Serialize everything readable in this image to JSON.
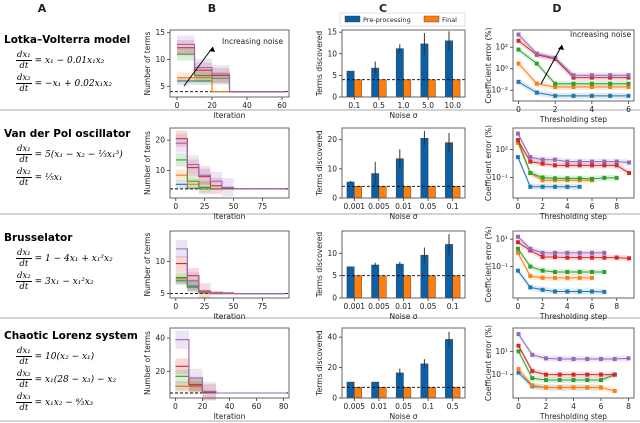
{
  "column_labels": [
    "A",
    "B",
    "C",
    "D"
  ],
  "systems": [
    {
      "title": "Lotka–Volterra model",
      "equations": [
        {
          "num": "dx₁",
          "den": "dt",
          "rhs": "= x₁ − 0.01x₁x₂"
        },
        {
          "num": "dx₂",
          "den": "dt",
          "rhs": "= −x₁ + 0.02x₁x₂"
        }
      ]
    },
    {
      "title": "Van der Pol oscillator",
      "equations": [
        {
          "num": "dx₁",
          "den": "dt",
          "rhs": "= 5(x₁ − x₂ − ⅓x₁³)"
        },
        {
          "num": "dx₂",
          "den": "dt",
          "rhs": "= ⅕x₁"
        }
      ]
    },
    {
      "title": "Brusselator",
      "equations": [
        {
          "num": "dx₁",
          "den": "dt",
          "rhs": "= 1 − 4x₁ + x₁²x₂"
        },
        {
          "num": "dx₂",
          "den": "dt",
          "rhs": "= 3x₁ − x₁²x₂"
        }
      ]
    },
    {
      "title": "Chaotic Lorenz system",
      "equations": [
        {
          "num": "dx₁",
          "den": "dt",
          "rhs": "= 10(x₂ − x₁)"
        },
        {
          "num": "dx₂",
          "den": "dt",
          "rhs": "= x₁(28 − x₃) − x₂"
        },
        {
          "num": "dx₃",
          "den": "dt",
          "rhs": "= x₁x₂ − ⁸⁄₃x₃"
        }
      ]
    }
  ],
  "colors": {
    "series": [
      "#1f77b4",
      "#ff7f0e",
      "#2ca02c",
      "#d62728",
      "#9467bd"
    ],
    "bar_pre": "#0b5fa5",
    "bar_final": "#ff7f0e"
  },
  "chart_data": [
    {
      "panel": "B",
      "row": 0,
      "type": "line",
      "step": true,
      "xlabel": "Iteration",
      "ylabel": "Number of terms",
      "xlim": [
        -4,
        64
      ],
      "ylim": [
        3,
        15.5
      ],
      "xticks": [
        0,
        20,
        40,
        60
      ],
      "yticks": [
        5,
        10,
        15
      ],
      "true_terms": 4,
      "annotation": "Increasing noise",
      "series": [
        {
          "values": [
            6,
            6,
            4,
            4
          ]
        },
        {
          "values": [
            6.6,
            6.6,
            4,
            4
          ]
        },
        {
          "values": [
            11,
            7,
            6.5,
            4
          ]
        },
        {
          "values": [
            12.2,
            8,
            7,
            4
          ]
        },
        {
          "values": [
            12.8,
            8.5,
            7.3,
            4
          ]
        }
      ],
      "xmax": 62
    },
    {
      "panel": "B",
      "row": 1,
      "type": "line",
      "step": true,
      "xlabel": "Iteration",
      "ylabel": "Number of terms",
      "xlim": [
        -5,
        98
      ],
      "ylim": [
        1,
        24
      ],
      "xticks": [
        0,
        25,
        50,
        75
      ],
      "yticks": [
        10,
        20
      ],
      "true_terms": 4,
      "series": [
        {
          "values": [
            5.5,
            4.2,
            4
          ]
        },
        {
          "values": [
            8.5,
            5.5,
            4.5,
            4
          ]
        },
        {
          "values": [
            13.5,
            6.5,
            4.5,
            4
          ]
        },
        {
          "values": [
            20.5,
            11,
            8,
            5,
            4.2,
            4
          ]
        },
        {
          "values": [
            19,
            12,
            8.5,
            6.5,
            4.5,
            4
          ]
        }
      ],
      "xmax": 95
    },
    {
      "panel": "B",
      "row": 2,
      "type": "line",
      "step": true,
      "xlabel": "Iteration",
      "ylabel": "Number of terms",
      "xlim": [
        -5,
        98
      ],
      "ylim": [
        4.3,
        14.8
      ],
      "xticks": [
        0,
        25,
        50,
        75
      ],
      "yticks": [
        5,
        10
      ],
      "true_terms": 5,
      "series": [
        {
          "values": [
            7,
            6,
            5.2,
            5
          ]
        },
        {
          "values": [
            7.3,
            6.2,
            5.2,
            5
          ]
        },
        {
          "values": [
            7.5,
            6.2,
            5.1,
            5
          ]
        },
        {
          "values": [
            9.7,
            7.8,
            5.4,
            5.2,
            5.1,
            5
          ]
        },
        {
          "values": [
            12,
            7,
            5.3,
            5
          ]
        }
      ],
      "xmax": 95
    },
    {
      "panel": "B",
      "row": 3,
      "type": "line",
      "step": true,
      "xlabel": "Iteration",
      "ylabel": "Number of terms",
      "xlim": [
        -4,
        84
      ],
      "ylim": [
        4,
        46
      ],
      "xticks": [
        0,
        20,
        40,
        60,
        80
      ],
      "yticks": [
        20,
        40
      ],
      "true_terms": 7,
      "series": [
        {
          "values": [
            11,
            11,
            7
          ]
        },
        {
          "values": [
            11,
            11,
            7
          ]
        },
        {
          "values": [
            17,
            12,
            7
          ]
        },
        {
          "values": [
            23,
            12,
            7.5,
            7
          ]
        },
        {
          "values": [
            39,
            16,
            8,
            7
          ]
        }
      ],
      "xmax": 82
    },
    {
      "panel": "C",
      "row": 0,
      "type": "bar",
      "xlabel": "Noise σ",
      "ylabel": "Terms discovered",
      "legend": [
        "Pre-processing",
        "Final"
      ],
      "legend_position": "top",
      "categories": [
        "0.1",
        "0.5",
        "1.0",
        "5.0",
        "10.0"
      ],
      "ylim": [
        0,
        15.5
      ],
      "yticks": [
        0,
        5,
        10,
        15
      ],
      "true_terms": 4,
      "series": [
        {
          "name": "Pre-processing",
          "values": [
            6,
            6.7,
            11.2,
            12.3,
            13
          ],
          "errors": [
            0,
            1.5,
            1,
            2.5,
            2.2
          ]
        },
        {
          "name": "Final",
          "values": [
            4,
            4,
            4,
            4,
            4
          ]
        }
      ]
    },
    {
      "panel": "C",
      "row": 1,
      "type": "bar",
      "xlabel": "Noise σ",
      "ylabel": "Terms discovered",
      "categories": [
        "0.001",
        "0.005",
        "0.01",
        "0.05",
        "0.1"
      ],
      "ylim": [
        0,
        24
      ],
      "yticks": [
        0,
        10,
        20
      ],
      "true_terms": 4,
      "series": [
        {
          "name": "Pre-processing",
          "values": [
            5.5,
            8.4,
            13.5,
            20.5,
            19
          ],
          "errors": [
            0.4,
            4,
            3.2,
            2.5,
            3.3
          ]
        },
        {
          "name": "Final",
          "values": [
            4,
            4,
            4,
            4,
            4
          ]
        }
      ]
    },
    {
      "panel": "C",
      "row": 2,
      "type": "bar",
      "xlabel": "Noise σ",
      "ylabel": "Terms discovered",
      "categories": [
        "0.001",
        "0.005",
        "0.01",
        "0.05",
        "0.1"
      ],
      "ylim": [
        0,
        15
      ],
      "yticks": [
        0,
        5,
        10
      ],
      "true_terms": 5,
      "series": [
        {
          "name": "Pre-processing",
          "values": [
            7,
            7.4,
            7.6,
            9.6,
            12
          ],
          "errors": [
            0,
            0.5,
            0.5,
            1.7,
            2.3
          ]
        },
        {
          "name": "Final",
          "values": [
            5,
            5,
            5,
            5,
            5
          ]
        }
      ]
    },
    {
      "panel": "C",
      "row": 3,
      "type": "bar",
      "xlabel": "Noise σ",
      "ylabel": "Terms discovered",
      "categories": [
        "0.005",
        "0.01",
        "0.05",
        "0.1",
        "0.5"
      ],
      "ylim": [
        0,
        46
      ],
      "yticks": [
        0,
        20,
        40
      ],
      "true_terms": 7,
      "series": [
        {
          "name": "Pre-processing",
          "values": [
            10.5,
            10.5,
            16.5,
            22.5,
            38.5
          ],
          "errors": [
            0,
            0,
            2.8,
            3,
            5
          ]
        },
        {
          "name": "Final",
          "values": [
            7,
            7,
            7,
            7,
            7
          ]
        }
      ]
    },
    {
      "panel": "D",
      "row": 0,
      "type": "line",
      "yscale": "log",
      "xlabel": "Thresholding step",
      "ylabel": "Coefficient error (%)",
      "xlim": [
        -0.3,
        6.3
      ],
      "ylim_log10": [
        -3,
        3.6
      ],
      "xticks": [
        0,
        2,
        4,
        6
      ],
      "yticks_log10": [
        2,
        0,
        -2
      ],
      "annotation": "Increasing noise",
      "series": [
        {
          "values": [
            0.06,
            0.006,
            0.003,
            0.003,
            0.003,
            0.003,
            0.003
          ]
        },
        {
          "values": [
            3,
            0.04,
            0.02,
            0.02,
            0.02,
            0.02,
            0.02
          ]
        },
        {
          "values": [
            60,
            3,
            0.04,
            0.04,
            0.04,
            0.04,
            0.04
          ]
        },
        {
          "values": [
            400,
            20,
            8,
            0.15,
            0.15,
            0.15,
            0.15
          ]
        },
        {
          "values": [
            1500,
            25,
            10,
            0.25,
            0.25,
            0.25,
            0.25
          ]
        }
      ]
    },
    {
      "panel": "D",
      "row": 1,
      "type": "line",
      "yscale": "log",
      "xlabel": "Thresholding step",
      "ylabel": "Coefficient error (%)",
      "xlim": [
        -0.4,
        9.4
      ],
      "ylim_log10": [
        -3.2,
        4.3
      ],
      "xticks": [
        0,
        2,
        4,
        6,
        8
      ],
      "yticks_log10": [
        2,
        -1
      ],
      "series": [
        {
          "values": [
            15,
            0.01,
            0.01,
            0.01,
            0.01,
            0.01
          ]
        },
        {
          "values": [
            500,
            0.3,
            0.05,
            0.05,
            0.05,
            0.05,
            0.05
          ]
        },
        {
          "values": [
            1000,
            0.3,
            0.1,
            0.08,
            0.08,
            0.08,
            0.07,
            0.09,
            0.09
          ]
        },
        {
          "values": [
            1000,
            5,
            3,
            2,
            2,
            2,
            2,
            2,
            2,
            0.3
          ]
        },
        {
          "values": [
            5000,
            15,
            8,
            8,
            5,
            5,
            5,
            5,
            5,
            4
          ]
        }
      ]
    },
    {
      "panel": "D",
      "row": 2,
      "type": "line",
      "yscale": "log",
      "xlabel": "Thresholding step",
      "ylabel": "Coefficient error (%)",
      "xlim": [
        -0.4,
        9.4
      ],
      "ylim_log10": [
        -3.3,
        1.6
      ],
      "xticks": [
        0,
        2,
        4,
        6,
        8
      ],
      "yticks_log10": [
        1,
        -1
      ],
      "series": [
        {
          "values": [
            0.05,
            0.003,
            0.002,
            0.0015,
            0.0015,
            0.0015,
            0.0015,
            0.0014
          ]
        },
        {
          "values": [
            1,
            0.02,
            0.015,
            0.015,
            0.015,
            0.015,
            0.015
          ]
        },
        {
          "values": [
            2,
            0.1,
            0.05,
            0.04,
            0.04,
            0.04,
            0.04,
            0.04
          ]
        },
        {
          "values": [
            6,
            1.5,
            0.5,
            0.5,
            0.45,
            0.45,
            0.45,
            0.45,
            0.45,
            0.4
          ]
        },
        {
          "values": [
            15,
            2,
            1,
            1,
            1,
            1,
            1,
            1
          ]
        }
      ]
    },
    {
      "panel": "D",
      "row": 3,
      "type": "line",
      "yscale": "log",
      "xlabel": "Thresholding step",
      "ylabel": "Coefficient error (%)",
      "xlim": [
        -0.4,
        8.4
      ],
      "ylim_log10": [
        -3,
        3
      ],
      "xticks": [
        0,
        2,
        4,
        6,
        8
      ],
      "yticks_log10": [
        1,
        -1
      ],
      "series": [
        {
          "values": [
            0.15,
            0.01,
            0.008,
            0.008,
            0.008,
            0.008,
            0.008
          ]
        },
        {
          "values": [
            0.3,
            0.012,
            0.008,
            0.008,
            0.008,
            0.008,
            0.008,
            0.004
          ]
        },
        {
          "values": [
            10,
            0.05,
            0.035,
            0.035,
            0.035,
            0.035,
            0.035,
            0.1
          ]
        },
        {
          "values": [
            30,
            0.2,
            0.1,
            0.1,
            0.1,
            0.1,
            0.1,
            0.1
          ]
        },
        {
          "values": [
            300,
            5,
            2.5,
            2.2,
            2.2,
            2.2,
            2.2,
            2.2,
            2.5
          ]
        }
      ]
    }
  ]
}
